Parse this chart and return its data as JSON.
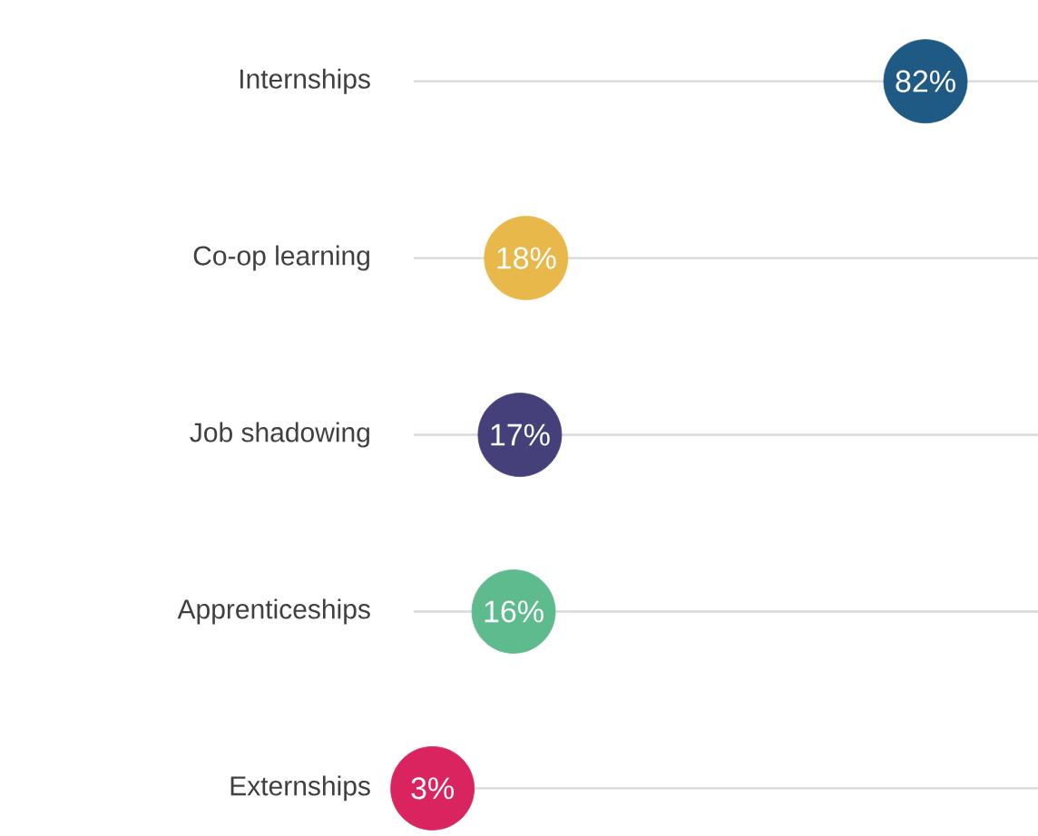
{
  "chart_data": {
    "type": "scatter",
    "orientation": "horizontal",
    "categories": [
      "Internships",
      "Co-op learning",
      "Job shadowing",
      "Apprenticeships",
      "Externships"
    ],
    "values": [
      82,
      18,
      17,
      16,
      3
    ],
    "value_labels": [
      "82%",
      "18%",
      "17%",
      "16%",
      "3%"
    ],
    "colors": [
      "#1f5a85",
      "#e8b84a",
      "#45407a",
      "#5dbb8e",
      "#d9245f"
    ],
    "grid": "y",
    "marker": "circle",
    "tick_labels": "y"
  }
}
